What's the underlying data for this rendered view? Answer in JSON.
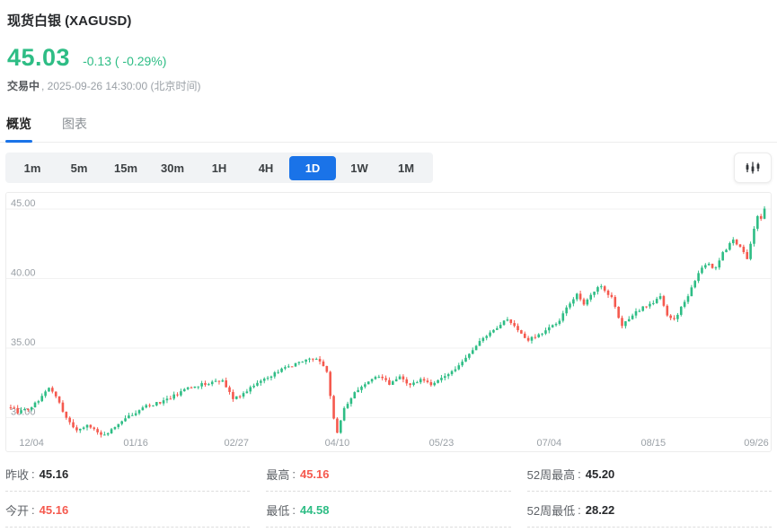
{
  "header": {
    "title": "现货白银 (XAGUSD)",
    "price": "45.03",
    "change": "-0.13 ( -0.29%)",
    "status": "交易中",
    "status_detail": ", 2025-09-26 14:30:00 (北京时间)"
  },
  "tabs": [
    {
      "label": "概览",
      "active": true
    },
    {
      "label": "图表",
      "active": false
    }
  ],
  "timeframes": {
    "options": [
      "1m",
      "5m",
      "15m",
      "30m",
      "1H",
      "4H",
      "1D",
      "1W",
      "1M"
    ],
    "active": "1D"
  },
  "toolbar": {
    "chart_style_icon": "candlestick-chart-icon"
  },
  "colors": {
    "accent": "#1a73e8",
    "up": "#2ebd85",
    "down": "#f5594e",
    "grid": "#f2f2f2",
    "tick_text": "#9aa0a6"
  },
  "stats": {
    "columns": [
      [
        {
          "label": "昨收",
          "value": "45.16",
          "color": "dark"
        },
        {
          "label": "今开",
          "value": "45.16",
          "color": "red"
        }
      ],
      [
        {
          "label": "最高",
          "value": "45.16",
          "color": "red"
        },
        {
          "label": "最低",
          "value": "44.58",
          "color": "green"
        }
      ],
      [
        {
          "label": "52周最高",
          "value": "45.20",
          "color": "dark"
        },
        {
          "label": "52周最低",
          "value": "28.22",
          "color": "dark"
        }
      ]
    ]
  },
  "chart_data": {
    "type": "candlestick",
    "symbol": "XAGUSD",
    "timeframe": "1D",
    "num_candles": 218,
    "ylim": [
      28.2,
      46.0
    ],
    "y_ticks": [
      45.0,
      40.0,
      35.0,
      30.0
    ],
    "y_tick_labels": [
      "45.00",
      "40.00",
      "35.00",
      "30.00"
    ],
    "x_tick_labels": [
      "12/04",
      "01/16",
      "02/27",
      "04/10",
      "05/23",
      "07/04",
      "08/15",
      "09/26"
    ],
    "x_tick_days": [
      6,
      36,
      65,
      94,
      124,
      155,
      185,
      215
    ],
    "last_close": 45.03,
    "last_high": 45.2,
    "grid": true,
    "legend": false,
    "anchors": [
      [
        0,
        30.8
      ],
      [
        2,
        30.4
      ],
      [
        5,
        30.6
      ],
      [
        8,
        31.2
      ],
      [
        11,
        32.1
      ],
      [
        13,
        31.6
      ],
      [
        15,
        30.4
      ],
      [
        17,
        29.6
      ],
      [
        19,
        29.1
      ],
      [
        22,
        29.5
      ],
      [
        25,
        29.0
      ],
      [
        27,
        28.7
      ],
      [
        30,
        29.4
      ],
      [
        33,
        29.9
      ],
      [
        36,
        30.4
      ],
      [
        39,
        30.8
      ],
      [
        44,
        31.2
      ],
      [
        48,
        31.7
      ],
      [
        52,
        32.2
      ],
      [
        57,
        32.5
      ],
      [
        61,
        32.6
      ],
      [
        64,
        31.4
      ],
      [
        66,
        31.6
      ],
      [
        70,
        32.3
      ],
      [
        76,
        33.2
      ],
      [
        82,
        33.9
      ],
      [
        86,
        34.3
      ],
      [
        89,
        34.1
      ],
      [
        91,
        33.3
      ],
      [
        92,
        31.6
      ],
      [
        93,
        29.9
      ],
      [
        94,
        28.9
      ],
      [
        96,
        30.6
      ],
      [
        99,
        31.8
      ],
      [
        102,
        32.4
      ],
      [
        106,
        33.0
      ],
      [
        109,
        32.4
      ],
      [
        112,
        32.9
      ],
      [
        115,
        32.3
      ],
      [
        118,
        32.8
      ],
      [
        121,
        32.4
      ],
      [
        124,
        32.8
      ],
      [
        128,
        33.4
      ],
      [
        131,
        34.3
      ],
      [
        134,
        35.2
      ],
      [
        137,
        35.9
      ],
      [
        140,
        36.5
      ],
      [
        143,
        37.1
      ],
      [
        146,
        36.2
      ],
      [
        149,
        35.6
      ],
      [
        152,
        36.0
      ],
      [
        155,
        36.4
      ],
      [
        158,
        37.0
      ],
      [
        160,
        37.9
      ],
      [
        163,
        38.9
      ],
      [
        165,
        38.2
      ],
      [
        168,
        39.1
      ],
      [
        170,
        39.5
      ],
      [
        173,
        38.6
      ],
      [
        176,
        36.6
      ],
      [
        179,
        37.4
      ],
      [
        182,
        37.9
      ],
      [
        185,
        38.3
      ],
      [
        187,
        38.8
      ],
      [
        189,
        37.3
      ],
      [
        191,
        37.0
      ],
      [
        193,
        37.9
      ],
      [
        195,
        38.7
      ],
      [
        197,
        39.9
      ],
      [
        199,
        40.8
      ],
      [
        201,
        41.0
      ],
      [
        203,
        40.7
      ],
      [
        205,
        41.8
      ],
      [
        208,
        42.8
      ],
      [
        210,
        42.3
      ],
      [
        212,
        41.4
      ],
      [
        214,
        43.6
      ],
      [
        215,
        44.5
      ],
      [
        216,
        44.4
      ],
      [
        217,
        45.03
      ]
    ]
  }
}
